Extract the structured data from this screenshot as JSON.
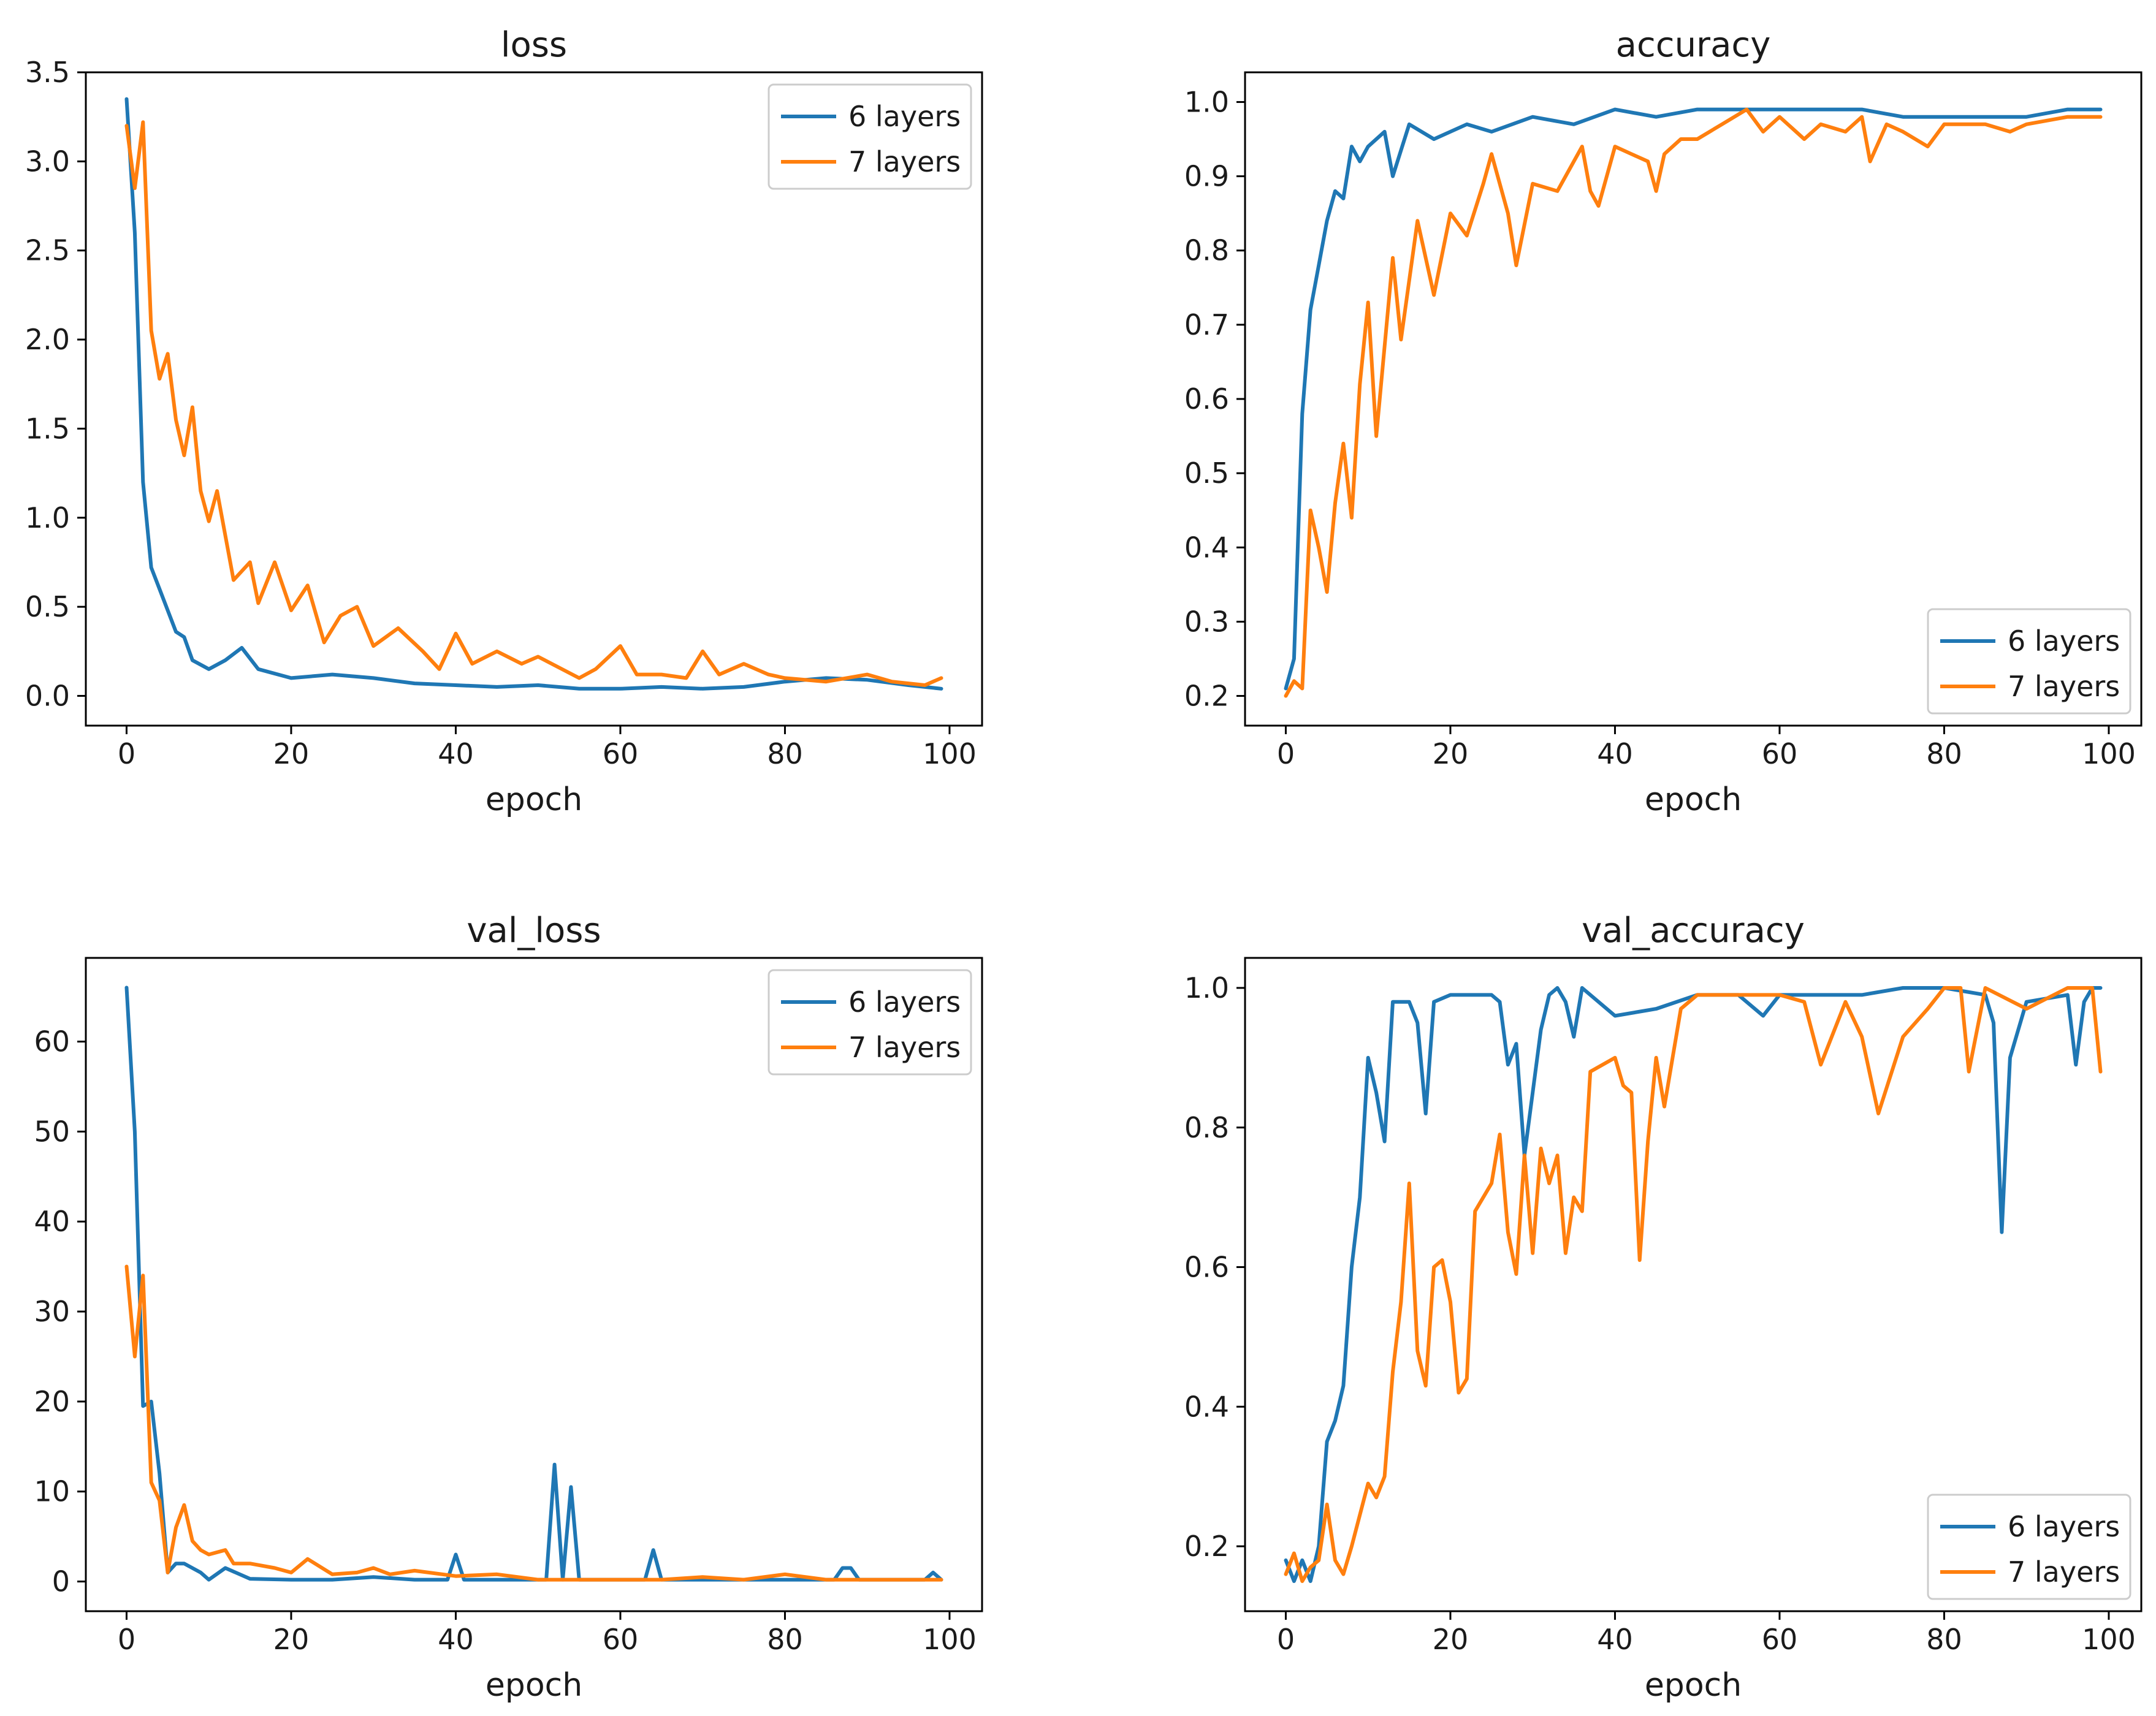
{
  "figure": {
    "background": "#ffffff"
  },
  "colors": {
    "series_0": "#1f77b4",
    "series_1": "#ff7f0e",
    "axes": "#000000",
    "legend_edge": "#cccccc"
  },
  "chart_data": [
    {
      "id": "loss",
      "type": "line",
      "title": "loss",
      "xlabel": "epoch",
      "ylabel": "",
      "xlim": [
        -4.95,
        103.95
      ],
      "ylim": [
        -0.167,
        3.5
      ],
      "xticks": [
        0,
        20,
        40,
        60,
        80,
        100
      ],
      "xtick_labels": [
        "0",
        "20",
        "40",
        "60",
        "80",
        "100"
      ],
      "yticks": [
        0.0,
        0.5,
        1.0,
        1.5,
        2.0,
        2.5,
        3.0,
        3.5
      ],
      "ytick_labels": [
        "0.0",
        "0.5",
        "1.0",
        "1.5",
        "2.0",
        "2.5",
        "3.0",
        "3.5"
      ],
      "grid": false,
      "legend_position": "upper right",
      "series": [
        {
          "name": "6 layers",
          "color": "#1f77b4",
          "x": [
            0,
            1,
            2,
            3,
            4,
            5,
            6,
            7,
            8,
            10,
            12,
            14,
            16,
            20,
            25,
            30,
            35,
            40,
            45,
            50,
            55,
            60,
            65,
            70,
            75,
            80,
            85,
            90,
            95,
            99
          ],
          "values": [
            3.35,
            2.6,
            1.2,
            0.72,
            0.6,
            0.48,
            0.36,
            0.33,
            0.2,
            0.15,
            0.2,
            0.27,
            0.15,
            0.1,
            0.12,
            0.1,
            0.07,
            0.06,
            0.05,
            0.06,
            0.04,
            0.04,
            0.05,
            0.04,
            0.05,
            0.08,
            0.1,
            0.09,
            0.06,
            0.04
          ]
        },
        {
          "name": "7 layers",
          "color": "#ff7f0e",
          "x": [
            0,
            1,
            2,
            3,
            4,
            5,
            6,
            7,
            8,
            9,
            10,
            11,
            13,
            15,
            16,
            18,
            20,
            22,
            24,
            26,
            28,
            30,
            33,
            36,
            38,
            40,
            42,
            45,
            48,
            50,
            55,
            57,
            60,
            62,
            65,
            68,
            70,
            72,
            75,
            78,
            80,
            85,
            90,
            93,
            95,
            97,
            99
          ],
          "values": [
            3.2,
            2.85,
            3.22,
            2.05,
            1.78,
            1.92,
            1.55,
            1.35,
            1.62,
            1.15,
            0.98,
            1.15,
            0.65,
            0.75,
            0.52,
            0.75,
            0.48,
            0.62,
            0.3,
            0.45,
            0.5,
            0.28,
            0.38,
            0.25,
            0.15,
            0.35,
            0.18,
            0.25,
            0.18,
            0.22,
            0.1,
            0.15,
            0.28,
            0.12,
            0.12,
            0.1,
            0.25,
            0.12,
            0.18,
            0.12,
            0.1,
            0.08,
            0.12,
            0.08,
            0.07,
            0.06,
            0.1
          ]
        }
      ]
    },
    {
      "id": "accuracy",
      "type": "line",
      "title": "accuracy",
      "xlabel": "epoch",
      "ylabel": "",
      "xlim": [
        -4.95,
        103.95
      ],
      "ylim": [
        0.16,
        1.04
      ],
      "xticks": [
        0,
        20,
        40,
        60,
        80,
        100
      ],
      "xtick_labels": [
        "0",
        "20",
        "40",
        "60",
        "80",
        "100"
      ],
      "yticks": [
        0.2,
        0.3,
        0.4,
        0.5,
        0.6,
        0.7,
        0.8,
        0.9,
        1.0
      ],
      "ytick_labels": [
        "0.2",
        "0.3",
        "0.4",
        "0.5",
        "0.6",
        "0.7",
        "0.8",
        "0.9",
        "1.0"
      ],
      "grid": false,
      "legend_position": "lower right",
      "series": [
        {
          "name": "6 layers",
          "color": "#1f77b4",
          "x": [
            0,
            1,
            2,
            3,
            4,
            5,
            6,
            7,
            8,
            9,
            10,
            12,
            13,
            15,
            18,
            22,
            25,
            30,
            35,
            40,
            45,
            50,
            55,
            60,
            65,
            70,
            75,
            80,
            85,
            90,
            95,
            99
          ],
          "values": [
            0.21,
            0.25,
            0.58,
            0.72,
            0.78,
            0.84,
            0.88,
            0.87,
            0.94,
            0.92,
            0.94,
            0.96,
            0.9,
            0.97,
            0.95,
            0.97,
            0.96,
            0.98,
            0.97,
            0.99,
            0.98,
            0.99,
            0.99,
            0.99,
            0.99,
            0.99,
            0.98,
            0.98,
            0.98,
            0.98,
            0.99,
            0.99
          ]
        },
        {
          "name": "7 layers",
          "color": "#ff7f0e",
          "x": [
            0,
            1,
            2,
            3,
            4,
            5,
            6,
            7,
            8,
            9,
            10,
            11,
            13,
            14,
            16,
            18,
            20,
            22,
            24,
            25,
            27,
            28,
            30,
            33,
            35,
            36,
            37,
            38,
            40,
            42,
            44,
            45,
            46,
            48,
            50,
            53,
            56,
            58,
            60,
            63,
            65,
            68,
            70,
            71,
            73,
            75,
            78,
            80,
            85,
            88,
            90,
            95,
            99
          ],
          "values": [
            0.2,
            0.22,
            0.21,
            0.45,
            0.4,
            0.34,
            0.46,
            0.54,
            0.44,
            0.62,
            0.73,
            0.55,
            0.79,
            0.68,
            0.84,
            0.74,
            0.85,
            0.82,
            0.89,
            0.93,
            0.85,
            0.78,
            0.89,
            0.88,
            0.92,
            0.94,
            0.88,
            0.86,
            0.94,
            0.93,
            0.92,
            0.88,
            0.93,
            0.95,
            0.95,
            0.97,
            0.99,
            0.96,
            0.98,
            0.95,
            0.97,
            0.96,
            0.98,
            0.92,
            0.97,
            0.96,
            0.94,
            0.97,
            0.97,
            0.96,
            0.97,
            0.98,
            0.98
          ]
        }
      ]
    },
    {
      "id": "val_loss",
      "type": "line",
      "title": "val_loss",
      "xlabel": "epoch",
      "ylabel": "",
      "xlim": [
        -4.95,
        103.95
      ],
      "ylim": [
        -3.3,
        69.3
      ],
      "xticks": [
        0,
        20,
        40,
        60,
        80,
        100
      ],
      "xtick_labels": [
        "0",
        "20",
        "40",
        "60",
        "80",
        "100"
      ],
      "yticks": [
        0,
        10,
        20,
        30,
        40,
        50,
        60
      ],
      "ytick_labels": [
        "0",
        "10",
        "20",
        "30",
        "40",
        "50",
        "60"
      ],
      "grid": false,
      "legend_position": "upper right",
      "series": [
        {
          "name": "6 layers",
          "color": "#1f77b4",
          "x": [
            0,
            1,
            2,
            3,
            4,
            5,
            6,
            7,
            9,
            10,
            12,
            15,
            20,
            25,
            30,
            35,
            39,
            40,
            41,
            45,
            50,
            51,
            52,
            53,
            54,
            55,
            60,
            63,
            64,
            65,
            70,
            80,
            86,
            87,
            88,
            89,
            95,
            97,
            98,
            99
          ],
          "values": [
            66,
            50,
            19.5,
            20,
            12,
            1,
            2,
            2,
            1,
            0.2,
            1.5,
            0.3,
            0.2,
            0.2,
            0.5,
            0.2,
            0.2,
            3,
            0.2,
            0.2,
            0.2,
            0.2,
            13,
            0.2,
            10.5,
            0.2,
            0.2,
            0.2,
            3.5,
            0.2,
            0.2,
            0.2,
            0.2,
            1.5,
            1.5,
            0.2,
            0.2,
            0.2,
            1,
            0.2
          ]
        },
        {
          "name": "7 layers",
          "color": "#ff7f0e",
          "x": [
            0,
            1,
            2,
            3,
            4,
            5,
            6,
            7,
            8,
            9,
            10,
            12,
            13,
            15,
            18,
            20,
            22,
            25,
            28,
            30,
            32,
            35,
            40,
            45,
            50,
            55,
            60,
            65,
            70,
            75,
            80,
            85,
            90,
            95,
            99
          ],
          "values": [
            35,
            25,
            34,
            11,
            9,
            1,
            6,
            8.5,
            4.5,
            3.5,
            3,
            3.5,
            2,
            2,
            1.5,
            1,
            2.5,
            0.8,
            1,
            1.5,
            0.8,
            1.2,
            0.6,
            0.8,
            0.2,
            0.2,
            0.2,
            0.2,
            0.5,
            0.2,
            0.8,
            0.2,
            0.2,
            0.2,
            0.2
          ]
        }
      ]
    },
    {
      "id": "val_accuracy",
      "type": "line",
      "title": "val_accuracy",
      "xlabel": "epoch",
      "ylabel": "",
      "xlim": [
        -4.95,
        103.95
      ],
      "ylim": [
        0.107,
        1.043
      ],
      "xticks": [
        0,
        20,
        40,
        60,
        80,
        100
      ],
      "xtick_labels": [
        "0",
        "20",
        "40",
        "60",
        "80",
        "100"
      ],
      "yticks": [
        0.2,
        0.4,
        0.6,
        0.8,
        1.0
      ],
      "ytick_labels": [
        "0.2",
        "0.4",
        "0.6",
        "0.8",
        "1.0"
      ],
      "grid": false,
      "legend_position": "lower right",
      "series": [
        {
          "name": "6 layers",
          "color": "#1f77b4",
          "x": [
            0,
            1,
            2,
            3,
            4,
            5,
            6,
            7,
            8,
            9,
            10,
            11,
            12,
            13,
            15,
            16,
            17,
            18,
            20,
            25,
            26,
            27,
            28,
            29,
            30,
            31,
            32,
            33,
            34,
            35,
            36,
            40,
            45,
            50,
            55,
            58,
            60,
            65,
            70,
            75,
            80,
            85,
            86,
            87,
            88,
            90,
            95,
            96,
            97,
            98,
            99
          ],
          "values": [
            0.18,
            0.15,
            0.18,
            0.15,
            0.2,
            0.35,
            0.38,
            0.43,
            0.6,
            0.7,
            0.9,
            0.85,
            0.78,
            0.98,
            0.98,
            0.95,
            0.82,
            0.98,
            0.99,
            0.99,
            0.98,
            0.89,
            0.92,
            0.76,
            0.85,
            0.94,
            0.99,
            1.0,
            0.98,
            0.93,
            1.0,
            0.96,
            0.97,
            0.99,
            0.99,
            0.96,
            0.99,
            0.99,
            0.99,
            1.0,
            1.0,
            0.99,
            0.95,
            0.65,
            0.9,
            0.98,
            0.99,
            0.89,
            0.98,
            1.0,
            1.0
          ]
        },
        {
          "name": "7 layers",
          "color": "#ff7f0e",
          "x": [
            0,
            1,
            2,
            3,
            4,
            5,
            6,
            7,
            8,
            10,
            11,
            12,
            13,
            14,
            15,
            16,
            17,
            18,
            19,
            20,
            21,
            22,
            23,
            25,
            26,
            27,
            28,
            29,
            30,
            31,
            32,
            33,
            34,
            35,
            36,
            37,
            40,
            41,
            42,
            43,
            44,
            45,
            46,
            48,
            50,
            55,
            60,
            63,
            65,
            68,
            70,
            72,
            75,
            78,
            80,
            82,
            83,
            85,
            90,
            95,
            98,
            99
          ],
          "values": [
            0.16,
            0.19,
            0.15,
            0.17,
            0.18,
            0.26,
            0.18,
            0.16,
            0.2,
            0.29,
            0.27,
            0.3,
            0.45,
            0.55,
            0.72,
            0.48,
            0.43,
            0.6,
            0.61,
            0.55,
            0.42,
            0.44,
            0.68,
            0.72,
            0.79,
            0.65,
            0.59,
            0.76,
            0.62,
            0.77,
            0.72,
            0.76,
            0.62,
            0.7,
            0.68,
            0.88,
            0.9,
            0.86,
            0.85,
            0.61,
            0.78,
            0.9,
            0.83,
            0.97,
            0.99,
            0.99,
            0.99,
            0.98,
            0.89,
            0.98,
            0.93,
            0.82,
            0.93,
            0.97,
            1.0,
            1.0,
            0.88,
            1.0,
            0.97,
            1.0,
            1.0,
            0.88
          ]
        }
      ]
    }
  ]
}
